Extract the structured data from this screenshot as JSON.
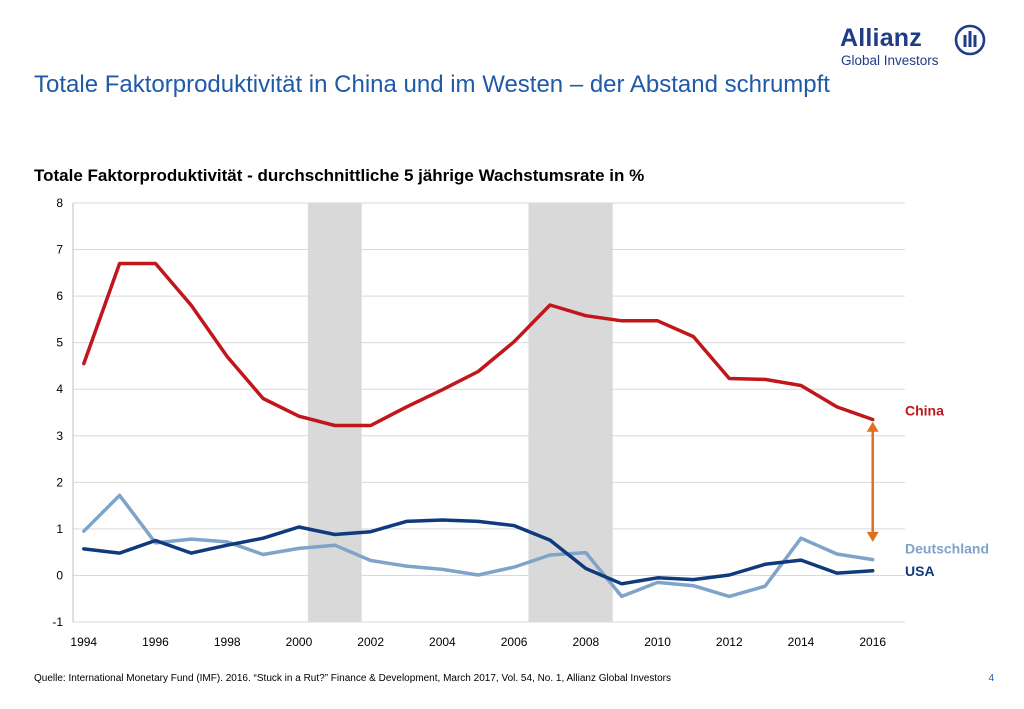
{
  "brand": {
    "name": "Allianz",
    "subtitle": "Global Investors",
    "color": "#1f3c88"
  },
  "slide": {
    "title": "Totale Faktorproduktivität in China und im Westen – der Abstand schrumpft",
    "source": "Quelle: International Monetary Fund (IMF). 2016. “Stuck in a Rut?” Finance & Development, March 2017, Vol. 54, No. 1, Allianz Global Investors",
    "page": "4"
  },
  "chart_data": {
    "type": "line",
    "title": "Totale Faktorproduktivität - durchschnittliche 5 jährige Wachstumsrate in %",
    "xlabel": "",
    "ylabel": "",
    "x": [
      1994,
      1995,
      1996,
      1997,
      1998,
      1999,
      2000,
      2001,
      2002,
      2003,
      2004,
      2005,
      2006,
      2007,
      2008,
      2009,
      2010,
      2011,
      2012,
      2013,
      2014,
      2015,
      2016
    ],
    "xticks": [
      "1994",
      "1996",
      "1998",
      "2000",
      "2002",
      "2004",
      "2006",
      "2008",
      "2010",
      "2012",
      "2014",
      "2016"
    ],
    "xlim": [
      1993.7,
      2016.9
    ],
    "ylim": [
      -1,
      8
    ],
    "yticks": [
      "-1",
      "0",
      "1",
      "2",
      "3",
      "4",
      "5",
      "6",
      "7",
      "8"
    ],
    "grid": true,
    "shaded_periods": [
      [
        2000.25,
        2001.75
      ],
      [
        2006.4,
        2008.75
      ]
    ],
    "series": [
      {
        "name": "China",
        "color": "#c0161c",
        "values": [
          4.55,
          6.7,
          6.7,
          5.8,
          4.7,
          3.8,
          3.42,
          3.22,
          3.22,
          3.62,
          3.99,
          4.38,
          5.02,
          5.81,
          5.58,
          5.47,
          5.47,
          5.13,
          4.23,
          4.21,
          4.08,
          3.62,
          3.35
        ]
      },
      {
        "name": "Deutschland",
        "color": "#7fa3c9",
        "values": [
          0.95,
          1.72,
          0.7,
          0.78,
          0.72,
          0.45,
          0.58,
          0.65,
          0.32,
          0.2,
          0.13,
          0.01,
          0.18,
          0.44,
          0.49,
          -0.45,
          -0.15,
          -0.22,
          -0.45,
          -0.23,
          0.8,
          0.46,
          0.34
        ]
      },
      {
        "name": "USA",
        "color": "#0f3a7d",
        "values": [
          0.57,
          0.48,
          0.75,
          0.48,
          0.65,
          0.8,
          1.04,
          0.88,
          0.94,
          1.16,
          1.19,
          1.16,
          1.07,
          0.76,
          0.15,
          -0.18,
          -0.05,
          -0.09,
          0.01,
          0.24,
          0.33,
          0.05,
          0.1
        ]
      }
    ],
    "annotation": {
      "type": "double-arrow",
      "x": 2016,
      "from": 3.3,
      "to": 0.72,
      "color": "#e07020"
    }
  }
}
